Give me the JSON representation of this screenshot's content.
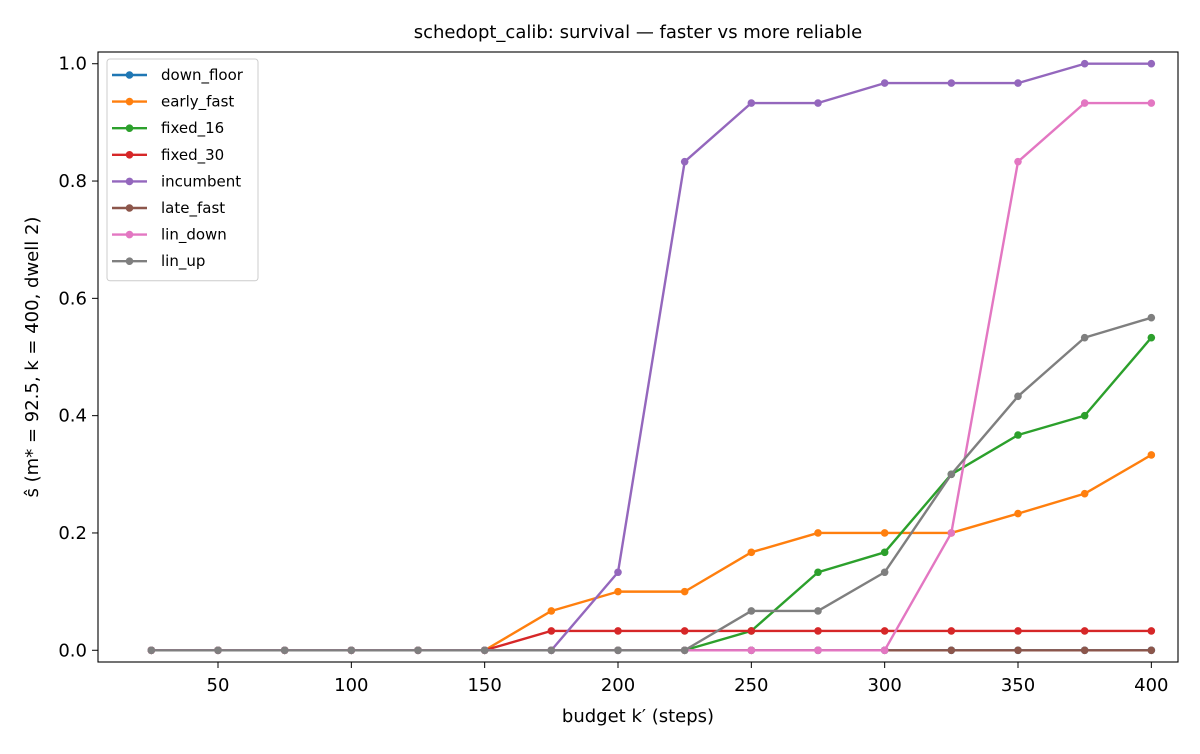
{
  "chart_data": {
    "type": "line",
    "title": "schedopt_calib: survival — faster vs more reliable",
    "xlabel": "budget k′ (steps)",
    "ylabel": "ŝ (m* = 92.5, k = 400, dwell 2)",
    "xlim": [
      5,
      410
    ],
    "ylim": [
      -0.02,
      1.02
    ],
    "xticks": [
      50,
      100,
      150,
      200,
      250,
      300,
      350,
      400
    ],
    "yticks": [
      0.0,
      0.2,
      0.4,
      0.6,
      0.8,
      1.0
    ],
    "xtick_labels": [
      "50",
      "100",
      "150",
      "200",
      "250",
      "300",
      "350",
      "400"
    ],
    "ytick_labels": [
      "0.0",
      "0.2",
      "0.4",
      "0.6",
      "0.8",
      "1.0"
    ],
    "grid": false,
    "legend_position": "top-left",
    "x": [
      25,
      50,
      75,
      100,
      125,
      150,
      175,
      200,
      225,
      250,
      275,
      300,
      325,
      350,
      375,
      400
    ],
    "series": [
      {
        "name": "down_floor",
        "color": "#1f77b4",
        "values": [
          0,
          0,
          0,
          0,
          0,
          0,
          0,
          0,
          0,
          0,
          0,
          0,
          0,
          0,
          0,
          0
        ]
      },
      {
        "name": "early_fast",
        "color": "#ff7f0e",
        "values": [
          0,
          0,
          0,
          0,
          0,
          0,
          0.067,
          0.1,
          0.1,
          0.167,
          0.2,
          0.2,
          0.2,
          0.233,
          0.267,
          0.333
        ]
      },
      {
        "name": "fixed_16",
        "color": "#2ca02c",
        "values": [
          0,
          0,
          0,
          0,
          0,
          0,
          0,
          0,
          0,
          0.033,
          0.133,
          0.167,
          0.3,
          0.367,
          0.4,
          0.533
        ]
      },
      {
        "name": "fixed_30",
        "color": "#d62728",
        "values": [
          0,
          0,
          0,
          0,
          0,
          0,
          0.033,
          0.033,
          0.033,
          0.033,
          0.033,
          0.033,
          0.033,
          0.033,
          0.033,
          0.033
        ]
      },
      {
        "name": "incumbent",
        "color": "#9467bd",
        "values": [
          0,
          0,
          0,
          0,
          0,
          0,
          0,
          0.133,
          0.833,
          0.933,
          0.933,
          0.967,
          0.967,
          0.967,
          1.0,
          1.0
        ]
      },
      {
        "name": "late_fast",
        "color": "#8c564b",
        "values": [
          0,
          0,
          0,
          0,
          0,
          0,
          0,
          0,
          0,
          0,
          0,
          0,
          0,
          0,
          0,
          0
        ]
      },
      {
        "name": "lin_down",
        "color": "#e377c2",
        "values": [
          0,
          0,
          0,
          0,
          0,
          0,
          0,
          0,
          0,
          0,
          0,
          0,
          0.2,
          0.833,
          0.933,
          0.933
        ]
      },
      {
        "name": "lin_up",
        "color": "#7f7f7f",
        "values": [
          0,
          0,
          0,
          0,
          0,
          0,
          0,
          0,
          0,
          0.067,
          0.067,
          0.133,
          0.3,
          0.433,
          0.533,
          0.567
        ]
      }
    ]
  }
}
